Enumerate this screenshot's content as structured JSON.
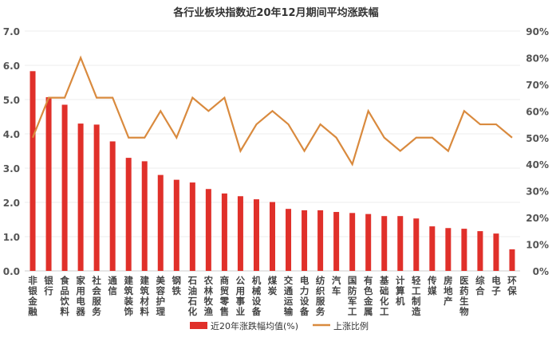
{
  "chart_data": {
    "type": "bar",
    "title": "各行业板块指数近20年12月期间平均涨跌幅",
    "categories": [
      "非银金融",
      "银行",
      "食品饮料",
      "家用电器",
      "社会服务",
      "通信",
      "建筑装饰",
      "建筑材料",
      "美容护理",
      "钢铁",
      "石油石化",
      "农林牧渔",
      "商贸零售",
      "公用事业",
      "机械设备",
      "煤炭",
      "交通运输",
      "电力设备",
      "纺织服务",
      "汽车",
      "国防军工",
      "有色金属",
      "基础化工",
      "计算机",
      "轻工制造",
      "传媒",
      "房地产",
      "医药生物",
      "综合",
      "电子",
      "环保"
    ],
    "series": [
      {
        "name": "近20年涨跌幅均值(%)",
        "type": "bar",
        "axis": "left",
        "color": "#e0302a",
        "values": [
          5.83,
          5.07,
          4.85,
          4.3,
          4.27,
          3.78,
          3.3,
          3.2,
          2.8,
          2.66,
          2.58,
          2.39,
          2.26,
          2.18,
          2.09,
          2.01,
          1.81,
          1.77,
          1.77,
          1.72,
          1.69,
          1.66,
          1.6,
          1.6,
          1.53,
          1.3,
          1.25,
          1.23,
          1.16,
          1.09,
          0.63
        ]
      },
      {
        "name": "上涨比例",
        "type": "line",
        "axis": "right",
        "color": "#d98a3e",
        "values": [
          50,
          65,
          65,
          80,
          65,
          65,
          50,
          50,
          60,
          50,
          65,
          60,
          65,
          45,
          55,
          60,
          55,
          45,
          55,
          50,
          40,
          60,
          50,
          45,
          50,
          50,
          45,
          60,
          55,
          55,
          50
        ]
      }
    ],
    "left_axis": {
      "ylim": [
        0,
        7
      ],
      "ticks": [
        "0.0",
        "1.0",
        "2.0",
        "3.0",
        "4.0",
        "5.0",
        "6.0",
        "7.0"
      ]
    },
    "right_axis": {
      "ylim": [
        0,
        90
      ],
      "ticks": [
        "0%",
        "10%",
        "20%",
        "30%",
        "40%",
        "50%",
        "60%",
        "70%",
        "80%",
        "90%"
      ]
    },
    "grid": true,
    "legend": "bottom"
  }
}
